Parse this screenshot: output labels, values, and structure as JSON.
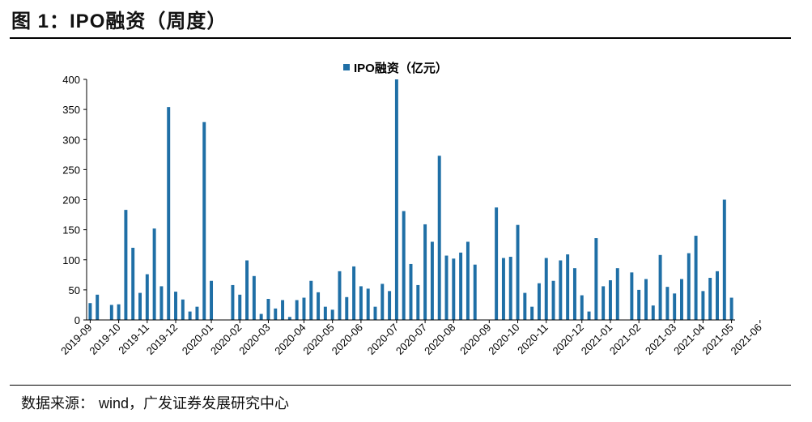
{
  "figure": {
    "title": "图 1：IPO融资（周度）",
    "source_prefix": "数据来源：",
    "source_text": "wind，广发证券发展研究中心"
  },
  "colors": {
    "bar": "#1f6fa6",
    "axis": "#000000"
  },
  "chart_data": {
    "type": "bar",
    "title": "",
    "xlabel": "",
    "ylabel": "",
    "ylim": [
      0,
      400
    ],
    "yticks": [
      0,
      50,
      100,
      150,
      200,
      250,
      300,
      350,
      400
    ],
    "grid": false,
    "legend": {
      "position": "top-center"
    },
    "series": [
      {
        "name": "IPO融资（亿元）",
        "color": "#1f6fa6",
        "values": [
          28,
          42,
          0,
          25,
          26,
          183,
          120,
          45,
          76,
          152,
          56,
          354,
          47,
          34,
          14,
          22,
          329,
          65,
          0,
          0,
          58,
          42,
          99,
          73,
          10,
          35,
          19,
          33,
          5,
          33,
          37,
          65,
          46,
          22,
          17,
          81,
          38,
          89,
          56,
          52,
          22,
          60,
          48,
          400,
          181,
          93,
          58,
          159,
          130,
          273,
          107,
          102,
          112,
          130,
          92,
          0,
          0,
          187,
          103,
          105,
          158,
          45,
          22,
          61,
          103,
          65,
          99,
          109,
          86,
          41,
          14,
          136,
          56,
          66,
          86,
          0,
          79,
          50,
          68,
          24,
          108,
          55,
          44,
          68,
          111,
          140,
          48,
          70,
          81,
          200,
          37
        ]
      }
    ],
    "x_tick_labels": [
      {
        "label": "2019-09",
        "index": 0
      },
      {
        "label": "2019-10",
        "index": 4
      },
      {
        "label": "2019-11",
        "index": 8
      },
      {
        "label": "2019-12",
        "index": 12
      },
      {
        "label": "2020-01",
        "index": 17
      },
      {
        "label": "2020-02",
        "index": 21
      },
      {
        "label": "2020-03",
        "index": 25
      },
      {
        "label": "2020-04",
        "index": 30
      },
      {
        "label": "2020-05",
        "index": 34
      },
      {
        "label": "2020-06",
        "index": 38
      },
      {
        "label": "2020-07",
        "index": 43
      },
      {
        "label": "2020-07",
        "index": 47
      },
      {
        "label": "2020-08",
        "index": 51
      },
      {
        "label": "2020-09",
        "index": 56
      },
      {
        "label": "2020-10",
        "index": 60
      },
      {
        "label": "2020-11",
        "index": 64
      },
      {
        "label": "2020-12",
        "index": 69
      },
      {
        "label": "2021-01",
        "index": 73
      },
      {
        "label": "2021-02",
        "index": 77
      },
      {
        "label": "2021-03",
        "index": 82
      },
      {
        "label": "2021-04",
        "index": 86
      },
      {
        "label": "2021-05",
        "index": 90
      },
      {
        "label": "2021-06",
        "index": 94
      }
    ]
  }
}
